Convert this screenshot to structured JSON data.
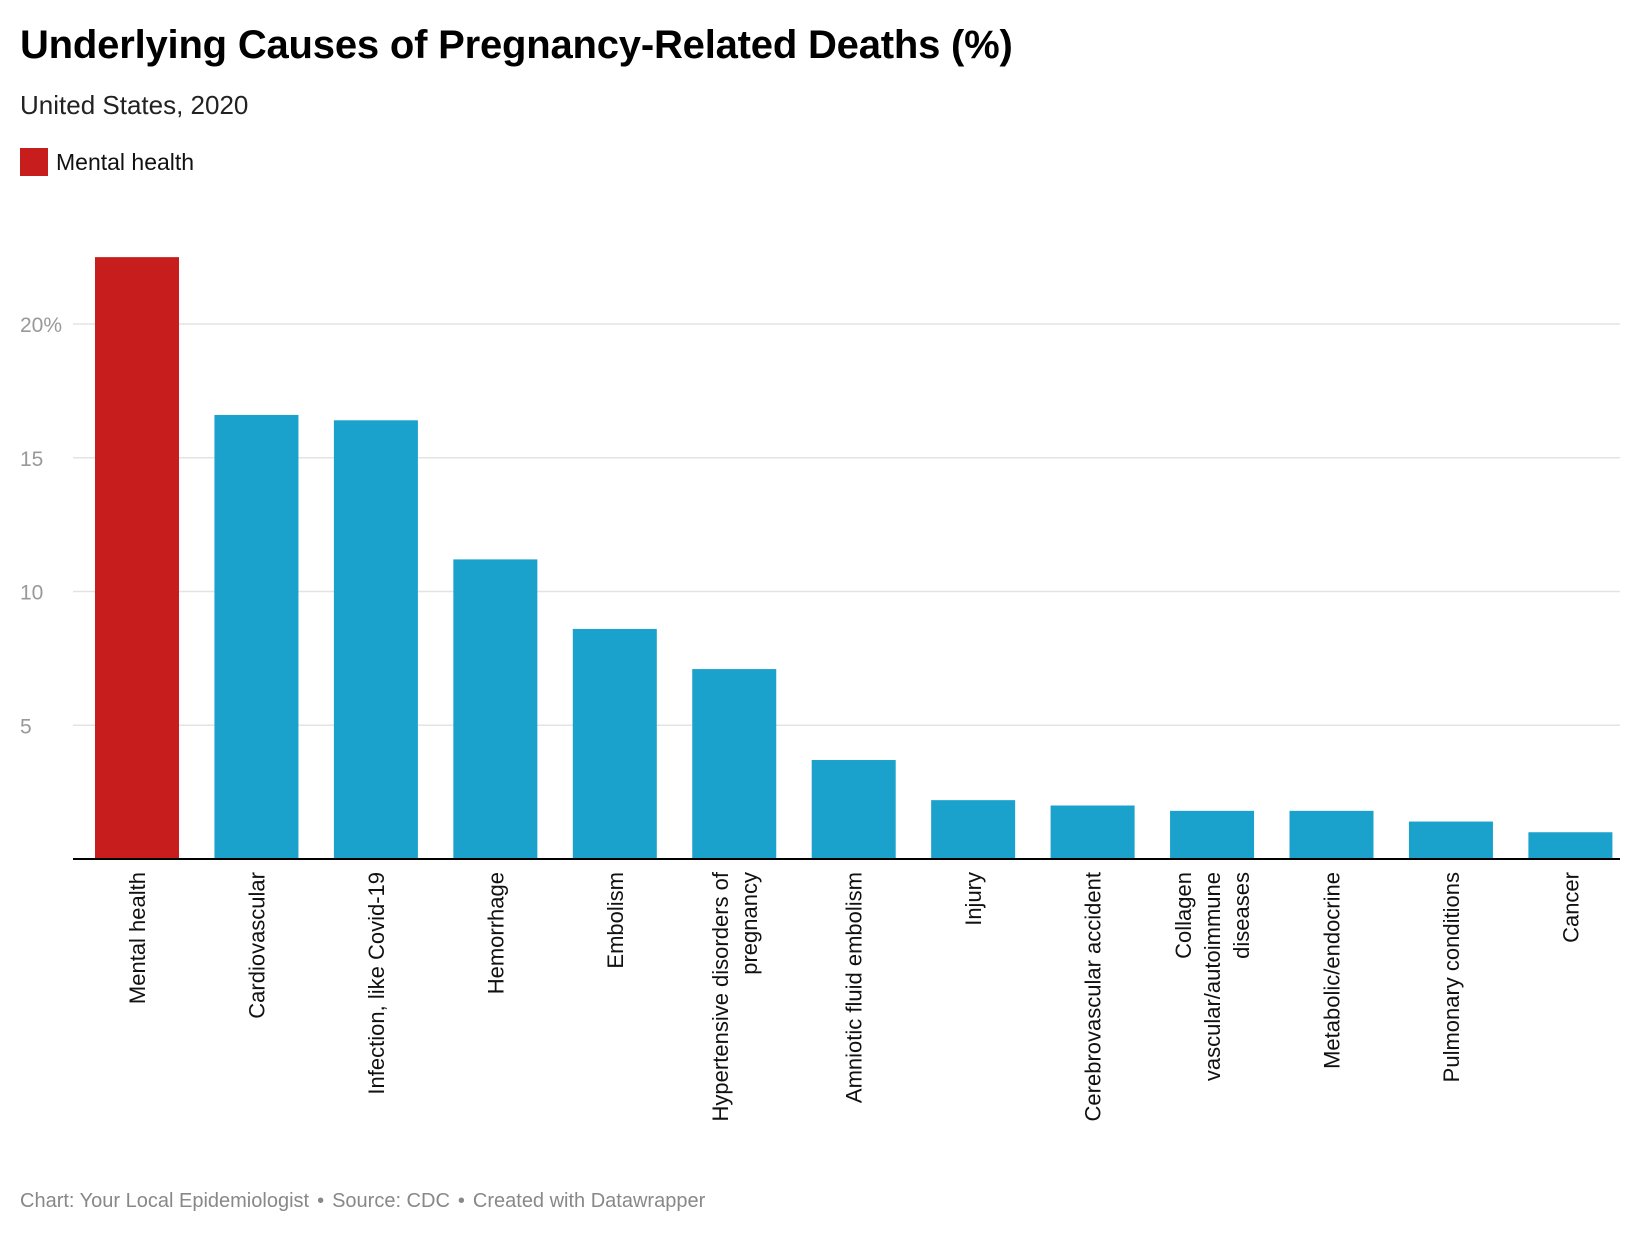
{
  "header": {
    "title": "Underlying Causes of Pregnancy-Related Deaths (%)",
    "subtitle": "United States, 2020"
  },
  "legend": {
    "label": "Mental health",
    "color": "#c71e1d"
  },
  "footer": {
    "chart_credit": "Chart: Your Local Epidemiologist",
    "source": "Source: CDC",
    "created_with": "Created with Datawrapper",
    "separator": "•"
  },
  "colors": {
    "highlight": "#c71e1d",
    "bar": "#1aa1cc",
    "grid": "#e3e3e3",
    "axis": "#000000",
    "tick_text": "#999999"
  },
  "chart_data": {
    "type": "bar",
    "title": "Underlying Causes of Pregnancy-Related Deaths (%)",
    "subtitle": "United States, 2020",
    "xlabel": "",
    "ylabel": "",
    "ylim": [
      0,
      23
    ],
    "yticks": [
      5,
      10,
      15,
      20
    ],
    "ytick_labels": [
      "5",
      "10",
      "15",
      "20%"
    ],
    "grid": true,
    "highlight_category": "Mental health",
    "categories": [
      "Mental health",
      "Cardiovascular",
      "Infection, like Covid-19",
      "Hemorrhage",
      "Embolism",
      "Hypertensive disorders of pregnancy",
      "Amniotic fluid embolism",
      "Injury",
      "Cerebrovascular accident",
      "Collagen vascular/autoimmune diseases",
      "Metabolic/endocrine",
      "Pulmonary conditions",
      "Cancer"
    ],
    "category_label_lines": [
      [
        "Mental health"
      ],
      [
        "Cardiovascular"
      ],
      [
        "Infection, like Covid-19"
      ],
      [
        "Hemorrhage"
      ],
      [
        "Embolism"
      ],
      [
        "Hypertensive disorders of",
        "pregnancy"
      ],
      [
        "Amniotic fluid embolism"
      ],
      [
        "Injury"
      ],
      [
        "Cerebrovascular accident"
      ],
      [
        "Collagen",
        "vascular/autoimmune",
        "diseases"
      ],
      [
        "Metabolic/endocrine"
      ],
      [
        "Pulmonary conditions"
      ],
      [
        "Cancer"
      ]
    ],
    "values": [
      22.5,
      16.6,
      16.4,
      11.2,
      8.6,
      7.1,
      3.7,
      2.2,
      2.0,
      1.8,
      1.8,
      1.4,
      1.0
    ]
  }
}
